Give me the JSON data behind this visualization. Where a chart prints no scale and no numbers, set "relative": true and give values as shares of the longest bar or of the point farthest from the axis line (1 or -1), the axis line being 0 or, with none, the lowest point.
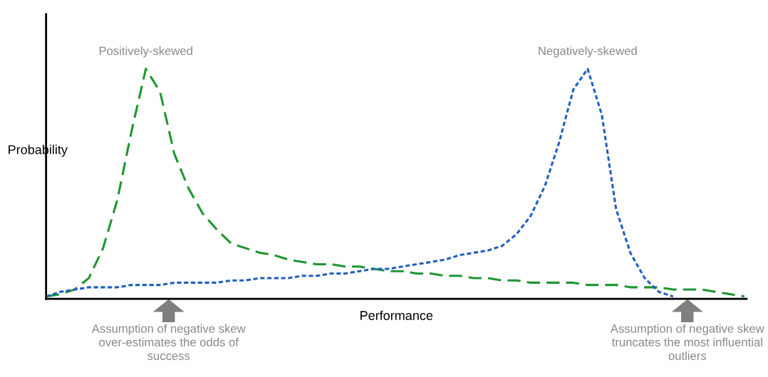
{
  "chart_data": {
    "type": "line",
    "relative": true,
    "xlabel": "Performance",
    "ylabel": "Probability",
    "legend": false,
    "marker": "none",
    "categories": [
      null,
      null,
      null,
      null,
      null,
      null,
      null,
      null,
      null,
      null,
      null,
      null,
      null,
      null,
      null,
      null,
      null,
      null,
      null,
      null,
      null,
      null,
      null,
      null,
      null,
      null,
      null,
      null,
      null,
      null,
      null,
      null,
      null,
      null,
      null,
      null,
      null,
      null,
      null,
      null,
      null,
      null,
      null,
      null,
      null,
      null,
      null,
      null,
      null,
      null
    ],
    "series": [
      {
        "name": "Positively-skewed",
        "color": "#1e9632",
        "line_style": "dashed",
        "values": [
          0.01,
          0.02,
          0.04,
          0.09,
          0.22,
          0.43,
          0.73,
          1.0,
          0.9,
          0.63,
          0.48,
          0.37,
          0.3,
          0.24,
          0.22,
          0.2,
          0.19,
          0.17,
          0.16,
          0.15,
          0.15,
          0.14,
          0.14,
          0.13,
          0.12,
          0.12,
          0.11,
          0.11,
          0.1,
          0.1,
          0.09,
          0.09,
          0.08,
          0.08,
          0.07,
          0.07,
          0.07,
          0.07,
          0.06,
          0.06,
          0.06,
          0.05,
          0.05,
          0.05,
          0.04,
          0.04,
          0.04,
          0.03,
          0.02,
          0.01
        ]
      },
      {
        "name": "Negatively-skewed",
        "color": "#1f5fbf",
        "line_style": "dotted",
        "values": [
          0.01,
          0.03,
          0.04,
          0.05,
          0.05,
          0.05,
          0.06,
          0.06,
          0.06,
          0.07,
          0.07,
          0.07,
          0.07,
          0.08,
          0.08,
          0.09,
          0.09,
          0.09,
          0.1,
          0.1,
          0.11,
          0.11,
          0.12,
          0.13,
          0.13,
          0.14,
          0.15,
          0.16,
          0.17,
          0.19,
          0.2,
          0.21,
          0.23,
          0.28,
          0.36,
          0.49,
          0.68,
          0.91,
          1.0,
          0.8,
          0.39,
          0.2,
          0.09,
          0.03,
          0.01,
          null,
          null,
          null,
          null,
          null
        ]
      }
    ],
    "annotations": [
      "Assumption of negative skew over-estimates the odds of success",
      "Assumption of negative skew truncates the most influential outliers"
    ]
  }
}
